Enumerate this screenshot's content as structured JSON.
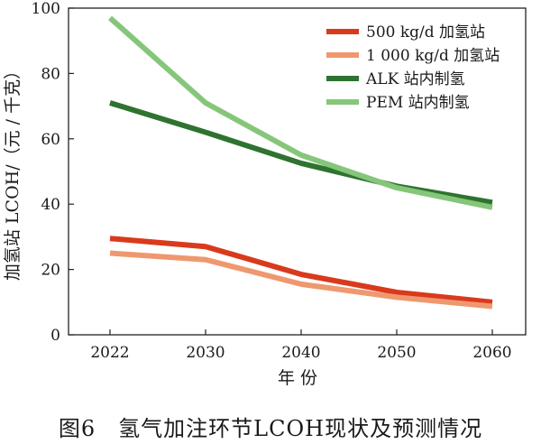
{
  "chart_data": {
    "type": "line",
    "x": [
      "2022",
      "2030",
      "2040",
      "2050",
      "2060"
    ],
    "xlabel": "年 份",
    "ylabel": "加氢站 LCOH/（元 / 千克）",
    "ylim": [
      0,
      100
    ],
    "yticks": [
      0,
      20,
      40,
      60,
      80,
      100
    ],
    "grid": false,
    "legend_position": "top-right",
    "series": [
      {
        "name": "500 kg/d 加氢站",
        "color": "#d93a1c",
        "values": [
          29.5,
          27,
          18.5,
          13,
          10
        ]
      },
      {
        "name": "1 000 kg/d 加氢站",
        "color": "#ef9870",
        "values": [
          25,
          23,
          15.5,
          11.5,
          8.7
        ]
      },
      {
        "name": "ALK 站内制氢",
        "color": "#2e7330",
        "values": [
          71,
          62,
          52.5,
          45.5,
          40.5
        ]
      },
      {
        "name": "PEM 站内制氢",
        "color": "#86c67a",
        "values": [
          97,
          71,
          55,
          45,
          39
        ]
      }
    ]
  },
  "caption": "图6　氢气加注环节LCOH现状及预测情况"
}
